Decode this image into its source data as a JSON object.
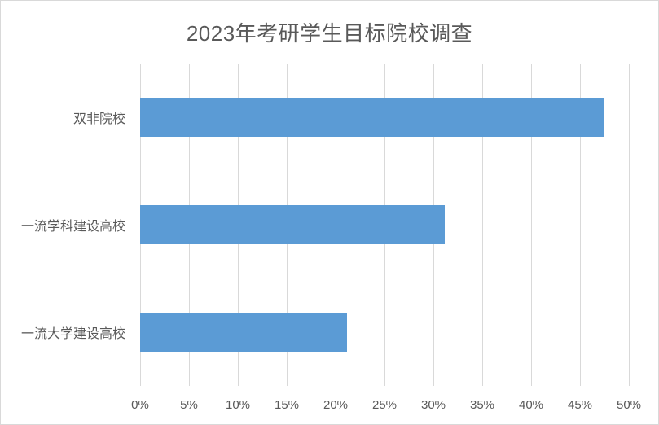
{
  "chart_data": {
    "type": "bar",
    "orientation": "horizontal",
    "title": "2023年考研学生目标院校调查",
    "categories": [
      "双非院校",
      "一流学科建设高校",
      "一流大学建设高校"
    ],
    "values": [
      47.5,
      31.2,
      21.2
    ],
    "value_unit": "%",
    "xlabel": "",
    "ylabel": "",
    "xlim": [
      0,
      50
    ],
    "ticks": [
      {
        "value": 0,
        "label": "0%"
      },
      {
        "value": 5,
        "label": "5%"
      },
      {
        "value": 10,
        "label": "10%"
      },
      {
        "value": 15,
        "label": "15%"
      },
      {
        "value": 20,
        "label": "20%"
      },
      {
        "value": 25,
        "label": "25%"
      },
      {
        "value": 30,
        "label": "30%"
      },
      {
        "value": 35,
        "label": "35%"
      },
      {
        "value": 40,
        "label": "40%"
      },
      {
        "value": 45,
        "label": "45%"
      },
      {
        "value": 50,
        "label": "50%"
      }
    ],
    "legend": "none",
    "grid": "vertical"
  },
  "colors": {
    "bar": "#5B9BD5",
    "gridline": "#D9D9D9",
    "text": "#595959",
    "border": "#D9D9D9",
    "background": "#FFFFFF"
  }
}
